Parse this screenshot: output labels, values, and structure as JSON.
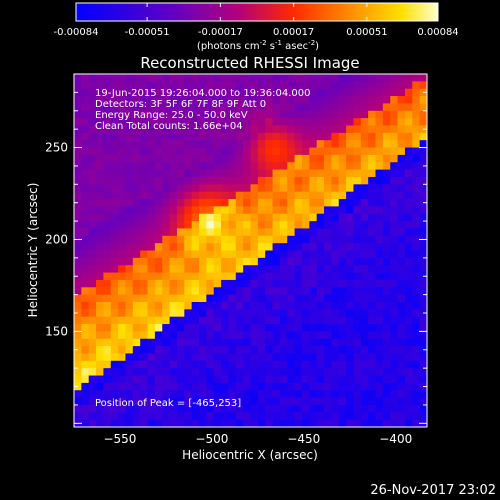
{
  "chart_data": {
    "type": "heatmap",
    "title": "Reconstructed RHESSI Image",
    "xlabel": "Heliocentric X (arcsec)",
    "ylabel": "Heliocentric Y (arcsec)",
    "xlim": [
      -575,
      -383
    ],
    "ylim": [
      98,
      290
    ],
    "xticks": [
      -550,
      -500,
      -450,
      -400
    ],
    "yticks": [
      150,
      200,
      250
    ],
    "colorbar": {
      "min": -0.00084,
      "max": 0.00084,
      "ticks": [
        "-0.00084",
        "-0.00051",
        "-0.00017",
        "0.00017",
        "0.00051",
        "0.00084"
      ],
      "label_prefix": "(photons cm",
      "label_exp1": "-2",
      "label_mid": " s",
      "label_exp2": "-1",
      "label_suffix": " asec",
      "label_exp3": "-2",
      "label_end": ")"
    },
    "annotations": [
      "19-Jun-2015 19:26:04.000 to 19:36:04.000",
      "Detectors: 3F 5F 6F 7F 8F 9F Att 0",
      "Energy Range: 25.0 - 50.0 keV",
      "Clean    Total counts: 1.66e+04"
    ],
    "peak_label": "Position of Peak = [-465,253]",
    "peak": [
      -465,
      253
    ]
  },
  "footer": {
    "date": "26-Nov-2017 23:02"
  },
  "colors": {
    "background": "#000000",
    "axes": "#ffffff"
  }
}
